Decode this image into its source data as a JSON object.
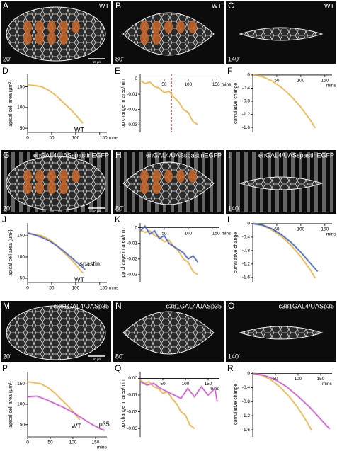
{
  "images": [
    {
      "letter": "A",
      "label": "WT",
      "time": "20'",
      "scale": "50 μm"
    },
    {
      "letter": "B",
      "label": "WT",
      "time": "80'"
    },
    {
      "letter": "C",
      "label": "WT",
      "time": "140'"
    },
    {
      "letter": "G",
      "label": "enGAL4/UASspastinEGFP",
      "time": "20'",
      "scale": "50 μm"
    },
    {
      "letter": "H",
      "label": "enGAL4/UASspastinEGFP",
      "time": "80'"
    },
    {
      "letter": "I",
      "label": "enGAL4/UASspastinEGFP",
      "time": "140'"
    },
    {
      "letter": "M",
      "label": "c381GAL4/UASp35",
      "time": "20'",
      "scale": "50 μm"
    },
    {
      "letter": "N",
      "label": "c381GAL4/UASp35",
      "time": "80'"
    },
    {
      "letter": "O",
      "label": "c381GAL4/UASp35",
      "time": "140'"
    }
  ],
  "chart_data": [
    {
      "type": "line",
      "letter": "D",
      "ylabel": "apical cell area (μm²)",
      "xlim": [
        0,
        165
      ],
      "ylim": [
        40,
        180
      ],
      "yticks": [
        50,
        100,
        150
      ],
      "xticks": [
        0,
        50,
        100,
        {
          "value": 150,
          "label": "150 mins"
        }
      ],
      "xaxis": "bottom",
      "series": [
        {
          "name": "WT",
          "color": "#e3b24a",
          "x": [
            0,
            15,
            30,
            45,
            60,
            75,
            90,
            105,
            115
          ],
          "values": [
            155,
            153,
            150,
            141,
            128,
            111,
            95,
            76,
            62
          ]
        }
      ]
    },
    {
      "type": "line",
      "letter": "E",
      "ylabel": "pp change in area/min",
      "xlim": [
        0,
        165
      ],
      "ylim": [
        -0.035,
        0.003
      ],
      "yticks": [
        0,
        -0.01,
        -0.02,
        -0.03
      ],
      "xticks": [
        50,
        100,
        {
          "value": 150,
          "label": "150 mins"
        }
      ],
      "xaxis": "top",
      "vline": 65,
      "vline_color": "#c0161c",
      "series": [
        {
          "color": "#e3b24a",
          "x": [
            0,
            10,
            20,
            30,
            40,
            50,
            60,
            70,
            80,
            90,
            100,
            110,
            120
          ],
          "values": [
            -0.001,
            -0.003,
            -0.002,
            -0.005,
            -0.006,
            -0.009,
            -0.008,
            -0.012,
            -0.015,
            -0.02,
            -0.022,
            -0.028,
            -0.03
          ]
        }
      ]
    },
    {
      "type": "line",
      "letter": "F",
      "ylabel": "cumulative change",
      "xlim": [
        0,
        165
      ],
      "ylim": [
        -1.75,
        0.02
      ],
      "yticks": [
        0,
        -0.4,
        -0.8,
        -1.2,
        -1.6
      ],
      "xticks": [
        50,
        100,
        150
      ],
      "xlabel": "mins",
      "xaxis": "top",
      "series": [
        {
          "color": "#e3b24a",
          "x": [
            0,
            20,
            40,
            60,
            80,
            100,
            120,
            130
          ],
          "values": [
            0,
            -0.05,
            -0.18,
            -0.38,
            -0.65,
            -0.98,
            -1.38,
            -1.62
          ]
        }
      ]
    },
    {
      "type": "line",
      "letter": "J",
      "ylabel": "apical cell area (μm²)",
      "xlim": [
        0,
        165
      ],
      "ylim": [
        40,
        180
      ],
      "yticks": [
        50,
        100,
        150
      ],
      "xticks": [
        0,
        50,
        100,
        {
          "value": 150,
          "label": "150 mins"
        }
      ],
      "xaxis": "bottom",
      "series": [
        {
          "name": "WT",
          "color": "#e3b24a",
          "x": [
            0,
            15,
            30,
            45,
            60,
            75,
            90,
            105,
            115
          ],
          "values": [
            155,
            153,
            150,
            141,
            128,
            111,
            95,
            76,
            62
          ]
        },
        {
          "name": "spastin",
          "color": "#4b5cb3",
          "x": [
            0,
            15,
            30,
            45,
            60,
            75,
            90,
            105,
            120
          ],
          "values": [
            157,
            152,
            146,
            138,
            127,
            114,
            100,
            85,
            70
          ]
        }
      ]
    },
    {
      "type": "line",
      "letter": "K",
      "ylabel": "pp change in area/min",
      "xlim": [
        0,
        165
      ],
      "ylim": [
        -0.035,
        0.003
      ],
      "yticks": [
        0,
        -0.01,
        -0.02,
        -0.03
      ],
      "xticks": [
        50,
        100,
        {
          "value": 150,
          "label": "150 mins"
        }
      ],
      "xaxis": "top",
      "series": [
        {
          "color": "#e3b24a",
          "x": [
            0,
            10,
            20,
            30,
            40,
            50,
            60,
            70,
            80,
            90,
            100,
            110,
            120
          ],
          "values": [
            -0.001,
            -0.003,
            -0.002,
            -0.005,
            -0.006,
            -0.009,
            -0.008,
            -0.012,
            -0.015,
            -0.02,
            -0.022,
            -0.028,
            -0.03
          ]
        },
        {
          "color": "#4b5cb3",
          "x": [
            0,
            10,
            20,
            30,
            40,
            50,
            60,
            70,
            80,
            90,
            100,
            110,
            120
          ],
          "values": [
            -0.002,
            0.001,
            -0.004,
            -0.002,
            -0.007,
            -0.005,
            -0.01,
            -0.012,
            -0.014,
            -0.016,
            -0.02,
            -0.018,
            -0.022
          ]
        }
      ]
    },
    {
      "type": "line",
      "letter": "L",
      "ylabel": "cumulative change",
      "xlim": [
        0,
        165
      ],
      "ylim": [
        -1.75,
        0.02
      ],
      "yticks": [
        0,
        -0.4,
        -0.8,
        -1.2,
        -1.6
      ],
      "xticks": [
        50,
        100,
        150
      ],
      "xlabel": "mins",
      "xaxis": "top",
      "series": [
        {
          "color": "#e3b24a",
          "x": [
            0,
            20,
            40,
            60,
            80,
            100,
            120,
            130
          ],
          "values": [
            0,
            -0.05,
            -0.18,
            -0.38,
            -0.65,
            -0.98,
            -1.38,
            -1.62
          ]
        },
        {
          "color": "#3f5fb0",
          "x": [
            0,
            20,
            40,
            60,
            80,
            100,
            120,
            135
          ],
          "values": [
            0,
            -0.04,
            -0.15,
            -0.33,
            -0.56,
            -0.85,
            -1.18,
            -1.42
          ]
        }
      ]
    },
    {
      "type": "line",
      "letter": "P",
      "ylabel": "apical cell area (μm²)",
      "xlim": [
        0,
        175
      ],
      "ylim": [
        20,
        180
      ],
      "yticks": [
        50,
        100,
        150
      ],
      "xticks": [
        0,
        50,
        100,
        150
      ],
      "xlabel": "mins",
      "xaxis": "bottom",
      "series": [
        {
          "name": "WT",
          "color": "#e3b24a",
          "x": [
            0,
            15,
            30,
            45,
            60,
            75,
            90,
            105,
            115
          ],
          "values": [
            155,
            153,
            150,
            141,
            128,
            111,
            95,
            76,
            62
          ]
        },
        {
          "name": "p35",
          "color": "#c258c4",
          "x": [
            0,
            20,
            40,
            60,
            80,
            100,
            120,
            140,
            160,
            170
          ],
          "values": [
            118,
            120,
            112,
            102,
            92,
            80,
            66,
            52,
            40,
            36
          ]
        }
      ]
    },
    {
      "type": "line",
      "letter": "Q",
      "ylabel": "pp change in area/min",
      "xlim": [
        0,
        175
      ],
      "ylim": [
        -0.035,
        0.004
      ],
      "yticks": [
        {
          "value": 0,
          "label": "0.00"
        },
        -0.01,
        -0.02,
        -0.03
      ],
      "xticks": [
        50,
        100,
        150
      ],
      "xlabel": "mins",
      "xaxis": "top",
      "series": [
        {
          "color": "#e3b24a",
          "x": [
            0,
            10,
            20,
            30,
            40,
            50,
            60,
            70,
            80,
            90,
            100,
            110,
            120
          ],
          "values": [
            -0.001,
            -0.003,
            -0.002,
            -0.005,
            -0.006,
            -0.009,
            -0.008,
            -0.012,
            -0.015,
            -0.02,
            -0.022,
            -0.028,
            -0.03
          ]
        },
        {
          "color": "#c258c4",
          "x": [
            0,
            15,
            30,
            45,
            60,
            75,
            90,
            105,
            120,
            135,
            150,
            165,
            170
          ],
          "values": [
            -0.002,
            -0.004,
            -0.003,
            -0.006,
            -0.008,
            -0.01,
            -0.012,
            -0.006,
            -0.011,
            -0.005,
            -0.01,
            -0.006,
            -0.014
          ]
        }
      ]
    },
    {
      "type": "line",
      "letter": "R",
      "ylabel": "cumulative change",
      "xlim": [
        0,
        175
      ],
      "ylim": [
        -1.8,
        0.05
      ],
      "yticks": [
        0,
        -0.4,
        -0.8,
        -1.2,
        -1.6
      ],
      "xticks": [
        50,
        100,
        150
      ],
      "xlabel": "mins",
      "xaxis": "top",
      "series": [
        {
          "color": "#e3b24a",
          "x": [
            0,
            20,
            40,
            60,
            80,
            100,
            120,
            130
          ],
          "values": [
            0,
            -0.05,
            -0.18,
            -0.38,
            -0.65,
            -0.98,
            -1.38,
            -1.62
          ]
        },
        {
          "color": "#c258c4",
          "x": [
            0,
            25,
            50,
            75,
            100,
            125,
            150,
            170
          ],
          "values": [
            0,
            -0.05,
            -0.18,
            -0.38,
            -0.65,
            -0.95,
            -1.3,
            -1.58
          ]
        }
      ]
    }
  ]
}
